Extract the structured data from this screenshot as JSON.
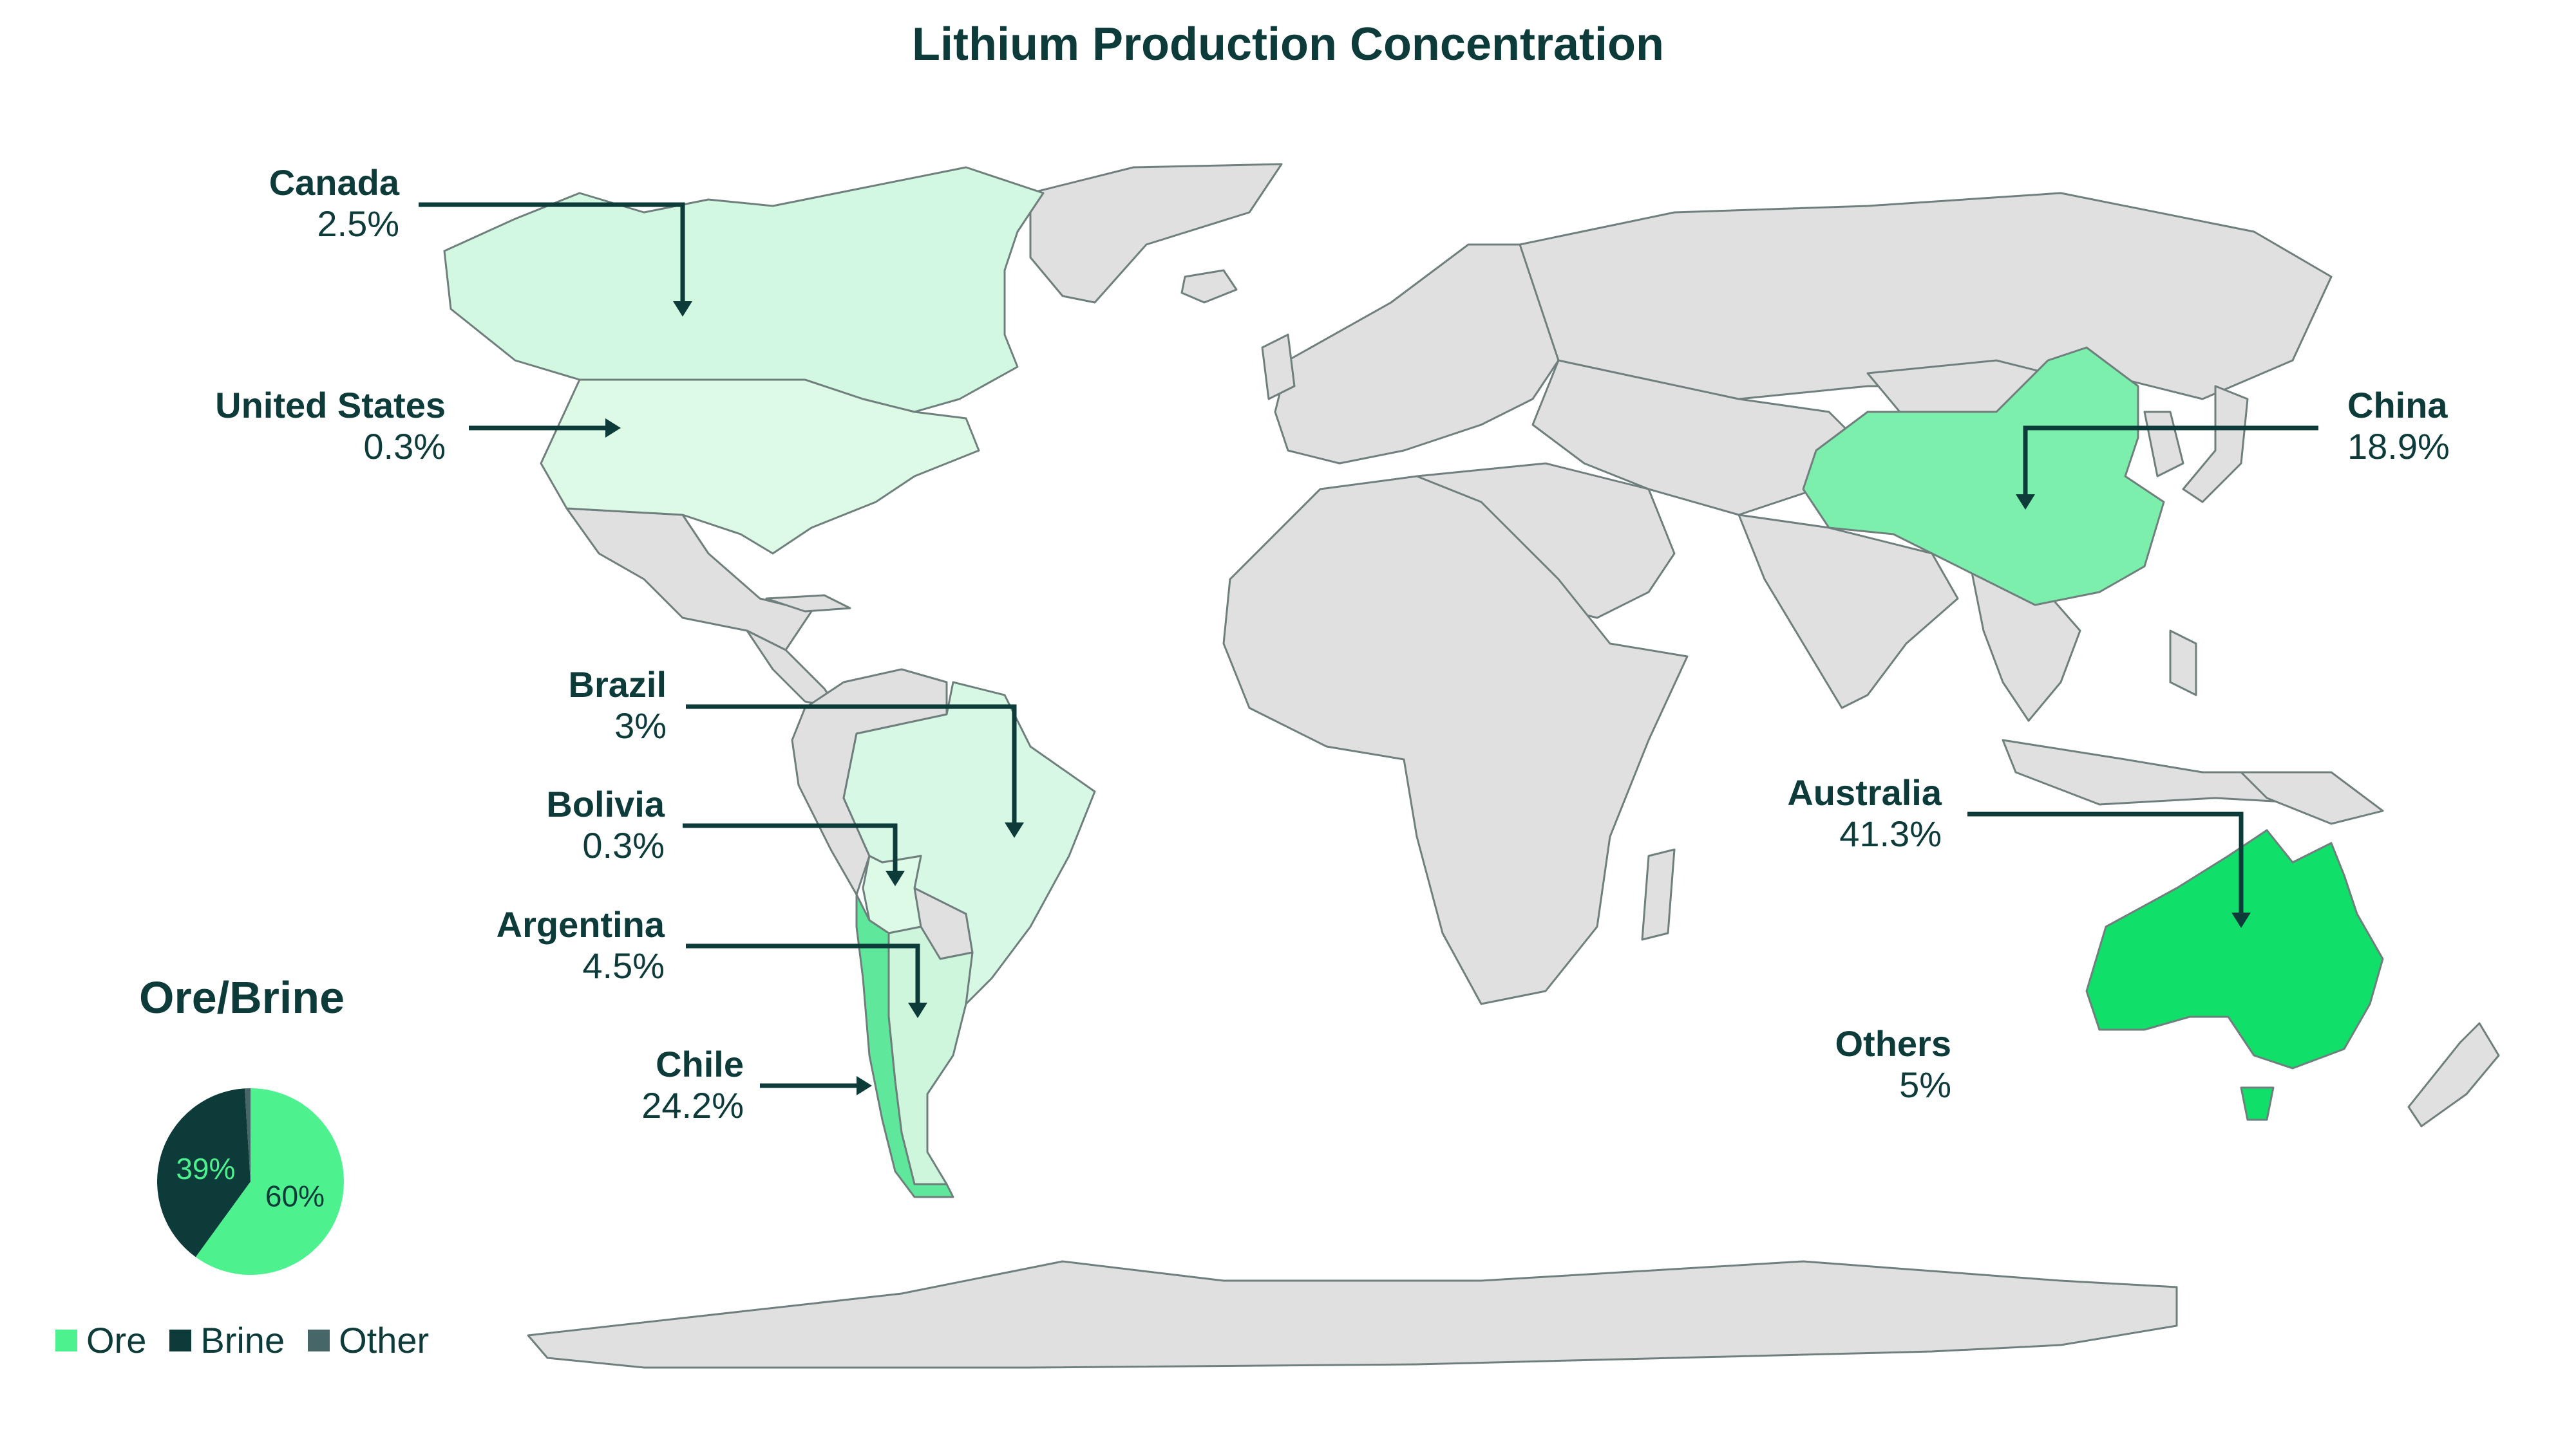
{
  "title": "Lithium Production Concentration",
  "countries": [
    {
      "key": "canada",
      "name": "Canada",
      "pct": "2.5%",
      "color": "#d3f8e2"
    },
    {
      "key": "united_states",
      "name": "United States",
      "pct": "0.3%",
      "color": "#dcfae6"
    },
    {
      "key": "brazil",
      "name": "Brazil",
      "pct": "3%",
      "color": "#d6f8e4"
    },
    {
      "key": "bolivia",
      "name": "Bolivia",
      "pct": "0.3%",
      "color": "#dcfae6"
    },
    {
      "key": "argentina",
      "name": "Argentina",
      "pct": "4.5%",
      "color": "#cdf6dc"
    },
    {
      "key": "chile",
      "name": "Chile",
      "pct": "24.2%",
      "color": "#5fe89b"
    },
    {
      "key": "china",
      "name": "China",
      "pct": "18.9%",
      "color": "#7def ad"
    },
    {
      "key": "australia",
      "name": "Australia",
      "pct": "41.3%",
      "color": "#10e06a"
    },
    {
      "key": "others",
      "name": "Others",
      "pct": "5%",
      "color": ""
    }
  ],
  "colors": {
    "land": "#e0e0e0",
    "border": "#6f7f7d",
    "ink": "#0c3b3a",
    "ore": "#4df28f",
    "brine": "#0c3b3a",
    "other": "#476667"
  },
  "ore_brine": {
    "title": "Ore/Brine",
    "slices": [
      {
        "label": "Ore",
        "value": 60,
        "text": "60%",
        "color": "#4df28f"
      },
      {
        "label": "Brine",
        "value": 39,
        "text": "39%",
        "color": "#0c3b3a"
      },
      {
        "label": "Other",
        "value": 1,
        "text": "",
        "color": "#476667"
      }
    ]
  }
}
